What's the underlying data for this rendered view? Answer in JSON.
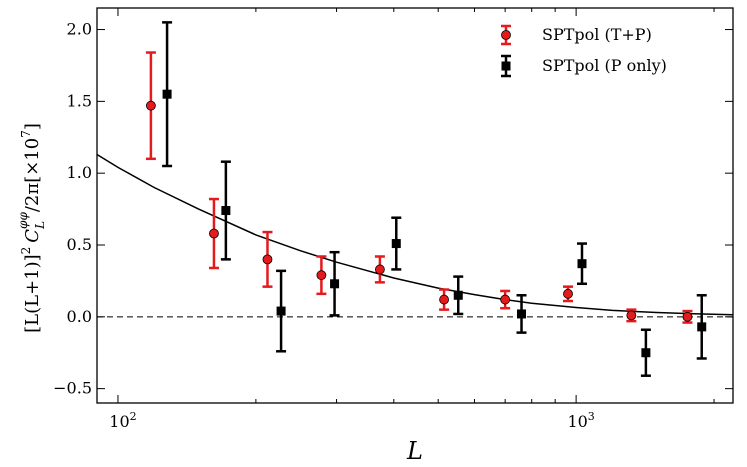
{
  "chart_data": {
    "type": "scatter",
    "title": "",
    "xlabel": "L",
    "ylabel": "[L(L+1)]² C_L^{φφ}/2π [×10⁷]",
    "xscale": "log",
    "xlim": [
      90,
      2200
    ],
    "ylim": [
      -0.6,
      2.15
    ],
    "y_ticks": [
      -0.5,
      0.0,
      0.5,
      1.0,
      1.5,
      2.0
    ],
    "y_tick_labels": [
      "−0.5",
      "0.0",
      "0.5",
      "1.0",
      "1.5",
      "2.0"
    ],
    "x_ticks": [
      100,
      1000
    ],
    "x_tick_labels": [
      {
        "base": "10",
        "exp": "2"
      },
      {
        "base": "10",
        "exp": "3"
      }
    ],
    "ylabel_parts": {
      "bracket": "[L(L+1)]",
      "sq": "2",
      "C": "C",
      "sub": "L",
      "sup": "φφ",
      "div": "/2π[×10",
      "exp": "7",
      "close": "]"
    },
    "legend_placement": "top-right",
    "zero_line": {
      "y": 0.0,
      "style": "dashed"
    },
    "theory_curve": {
      "name": "theory",
      "x": [
        90,
        100,
        120,
        150,
        200,
        250,
        300,
        400,
        500,
        600,
        700,
        800,
        1000,
        1200,
        1500,
        1800,
        2200
      ],
      "y": [
        1.13,
        1.04,
        0.9,
        0.75,
        0.57,
        0.46,
        0.38,
        0.27,
        0.2,
        0.155,
        0.12,
        0.095,
        0.065,
        0.045,
        0.03,
        0.022,
        0.015
      ]
    },
    "series": [
      {
        "name": "SPTpol (T+P)",
        "color": "#e41a1c",
        "marker": "circle",
        "x": [
          118,
          162,
          212,
          278,
          373,
          515,
          700,
          960,
          1320,
          1750
        ],
        "y": [
          1.47,
          0.58,
          0.4,
          0.29,
          0.33,
          0.12,
          0.12,
          0.16,
          0.01,
          0.0
        ],
        "err": [
          0.37,
          0.24,
          0.19,
          0.13,
          0.09,
          0.07,
          0.06,
          0.05,
          0.04,
          0.04
        ]
      },
      {
        "name": "SPTpol (P only)",
        "color": "#000000",
        "marker": "square",
        "x": [
          128,
          172,
          227,
          297,
          405,
          553,
          760,
          1030,
          1420,
          1880
        ],
        "y": [
          1.55,
          0.74,
          0.04,
          0.23,
          0.51,
          0.15,
          0.02,
          0.37,
          -0.25,
          -0.07
        ],
        "err": [
          0.5,
          0.34,
          0.28,
          0.22,
          0.18,
          0.13,
          0.13,
          0.14,
          0.16,
          0.22
        ]
      }
    ]
  }
}
